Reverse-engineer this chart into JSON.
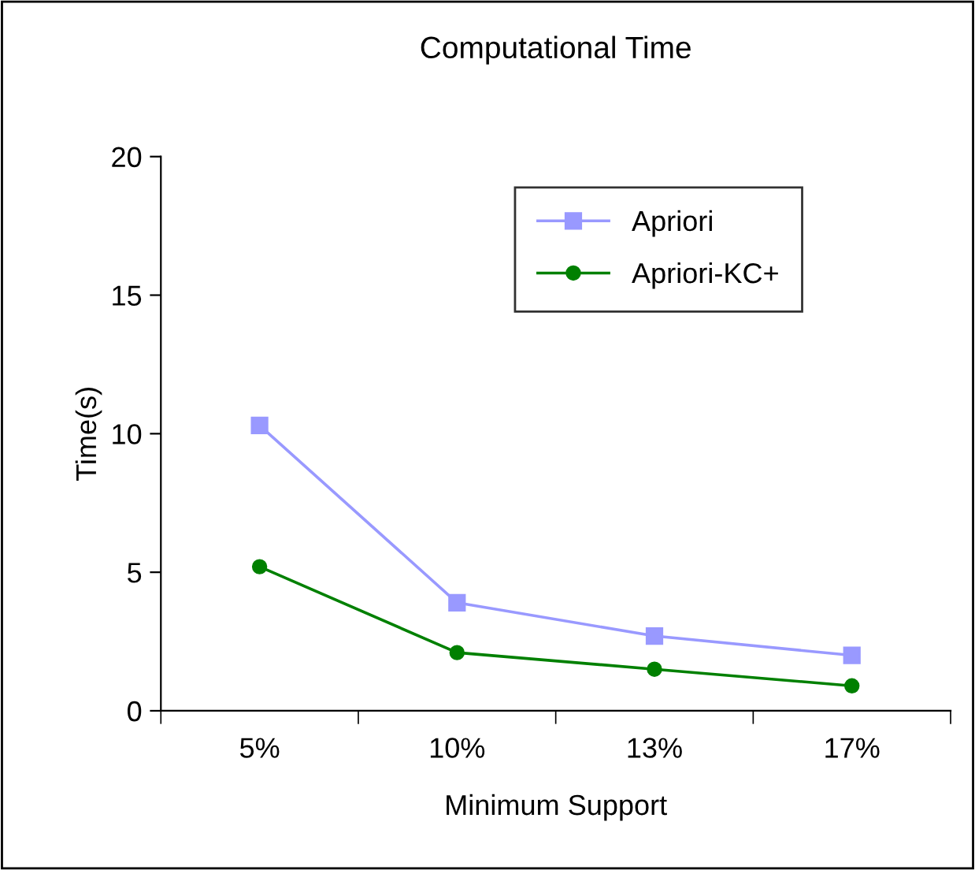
{
  "chart_data": {
    "type": "line",
    "title": "Computational Time",
    "xlabel": "Minimum Support",
    "ylabel": "Time(s)",
    "categories": [
      "5%",
      "10%",
      "13%",
      "17%"
    ],
    "series": [
      {
        "name": "Apriori",
        "color": "#9999ff",
        "marker": "square",
        "values": [
          10.3,
          3.9,
          2.7,
          2.0
        ]
      },
      {
        "name": "Apriori-KC+",
        "color": "#008000",
        "marker": "circle",
        "values": [
          5.2,
          2.1,
          1.5,
          0.9
        ]
      }
    ],
    "ylim": [
      0,
      20
    ],
    "yticks": [
      0,
      5,
      10,
      15,
      20
    ],
    "grid": false,
    "legend": "top right"
  }
}
